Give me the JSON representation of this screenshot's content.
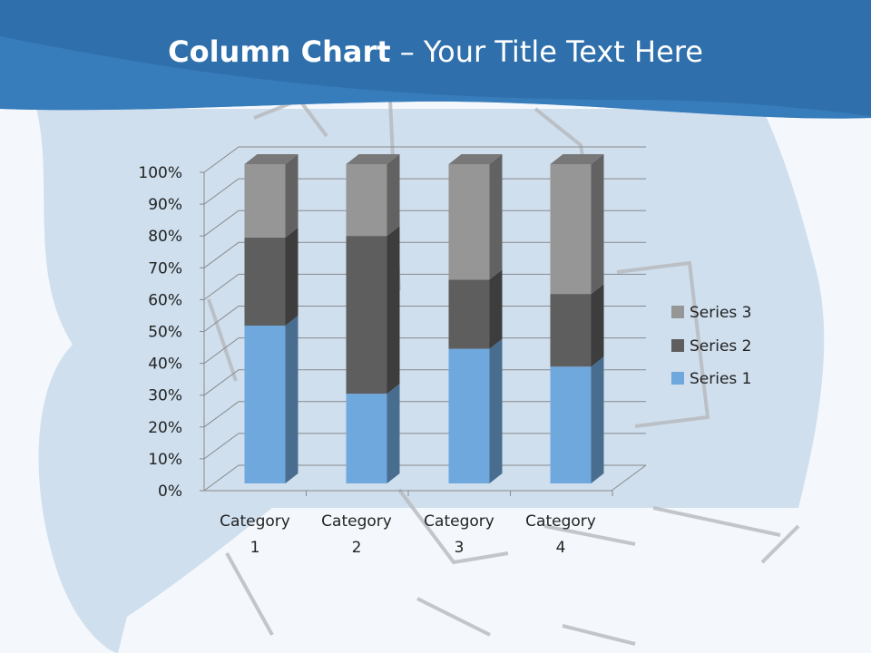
{
  "slide": {
    "title_bold": "Column Chart",
    "title_rest": " – Your Title Text Here"
  },
  "colors": {
    "header": "#2f6fab",
    "background_shape": "#cfdfee",
    "series": [
      "#6fa8dc",
      "#5e5e5e",
      "#969696"
    ]
  },
  "chart_data": {
    "type": "bar",
    "stacking": "percent",
    "3d": true,
    "categories": [
      "Category 1",
      "Category 2",
      "Category 3",
      "Category 4"
    ],
    "category_lines": [
      [
        "Category",
        "1"
      ],
      [
        "Category",
        "2"
      ],
      [
        "Category",
        "3"
      ],
      [
        "Category",
        "4"
      ]
    ],
    "series": [
      {
        "name": "Series 1",
        "values": [
          4.3,
          2.5,
          3.5,
          4.5
        ]
      },
      {
        "name": "Series 2",
        "values": [
          2.4,
          4.4,
          1.8,
          2.8
        ]
      },
      {
        "name": "Series 3",
        "values": [
          2,
          2,
          3,
          5
        ]
      }
    ],
    "yticks": [
      "0%",
      "10%",
      "20%",
      "30%",
      "40%",
      "50%",
      "60%",
      "70%",
      "80%",
      "90%",
      "100%"
    ],
    "ylim": [
      0,
      100
    ],
    "grid": true,
    "legend": "right"
  }
}
